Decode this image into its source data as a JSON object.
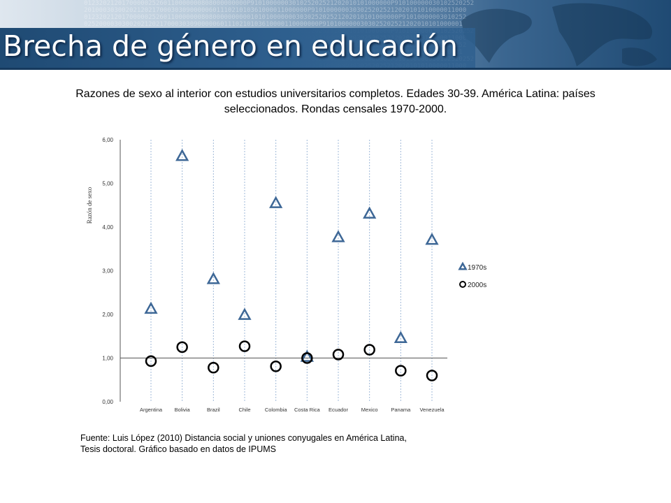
{
  "header": {
    "title": "Brecha de género en educación"
  },
  "subtitle": "Razones de sexo al interior con estudios universitarios completos. Edades 30-39. América Latina: países seleccionados. Rondas censales 1970-2000.",
  "source": {
    "line1": "Fuente: Luis López (2010) Distancia social y uniones conyugales en América Latina,",
    "line2": "Tesis doctoral. Gráfico basado en datos de IPUMS"
  },
  "colors": {
    "s1970": "#3d6796",
    "s2000": "#000000",
    "grid": "#9fb8d8"
  },
  "chart_data": {
    "type": "scatter",
    "title": "",
    "xlabel": "",
    "ylabel": "Razón de sexo",
    "ylim": [
      0,
      6
    ],
    "yticks": [
      "0,00",
      "1,00",
      "2,00",
      "3,00",
      "4,00",
      "5,00",
      "6,00"
    ],
    "categories": [
      "Argentina",
      "Bolivia",
      "Brazil",
      "Chile",
      "Colombia",
      "Costa Rica",
      "Ecuador",
      "Mexico",
      "Panama",
      "Venezuela"
    ],
    "legend_position": "right",
    "series": [
      {
        "name": "1970s",
        "marker": "triangle",
        "values": [
          2.12,
          5.62,
          2.8,
          1.98,
          4.54,
          1.02,
          3.76,
          4.3,
          1.45,
          3.7
        ]
      },
      {
        "name": "2000s",
        "marker": "circle",
        "values": [
          0.93,
          1.25,
          0.78,
          1.27,
          0.81,
          1.0,
          1.08,
          1.19,
          0.71,
          0.6
        ]
      }
    ]
  }
}
